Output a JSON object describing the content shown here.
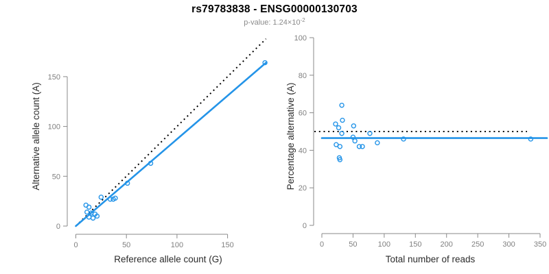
{
  "header": {
    "title": "rs79783838 - ENSG00000130703",
    "pvalue_text": "p-value: 1.24×10",
    "pvalue_exponent": "-2"
  },
  "colors": {
    "point_blue": "#2494E8",
    "axis_gray": "#898989",
    "tick_label_gray": "#7F7F7F",
    "axis_title_dark": "#2B2B2B",
    "expected_line_black": "#000000",
    "subtitle_gray": "#8A8A8A"
  },
  "chart_data": [
    {
      "type": "scatter",
      "panel": "left",
      "xlabel": "Reference allele count (G)",
      "ylabel": "Alternative allele count (A)",
      "xticks": [
        0,
        50,
        100,
        150
      ],
      "yticks": [
        0,
        50,
        100,
        150
      ],
      "xlim": [
        0,
        191
      ],
      "ylim": [
        0,
        191
      ],
      "grid": false,
      "points": [
        [
          10,
          21
        ],
        [
          13,
          19
        ],
        [
          11,
          14
        ],
        [
          15,
          13
        ],
        [
          19,
          12
        ],
        [
          13,
          9
        ],
        [
          17,
          8
        ],
        [
          21,
          10
        ],
        [
          25,
          29
        ],
        [
          34,
          27
        ],
        [
          37,
          27
        ],
        [
          39,
          28
        ],
        [
          51,
          43
        ],
        [
          74,
          63
        ],
        [
          187,
          164
        ]
      ],
      "lines": [
        {
          "name": "identity-line",
          "style": "dotted",
          "color": "#000000",
          "x1": 0,
          "y1": 0,
          "x2": 188,
          "y2": 188
        },
        {
          "name": "fit-line",
          "style": "solid",
          "color": "#2494E8",
          "x1": 0,
          "y1": 0,
          "x2": 188,
          "y2": 164
        }
      ]
    },
    {
      "type": "scatter",
      "panel": "right",
      "xlabel": "Total number of reads",
      "ylabel": "Percentage alternative (A)",
      "xticks": [
        0,
        50,
        100,
        150,
        200,
        250,
        300,
        350
      ],
      "yticks": [
        0,
        20,
        40,
        60,
        80,
        100
      ],
      "xlim": [
        0,
        361
      ],
      "ylim": [
        0,
        100
      ],
      "grid": false,
      "points": [
        [
          32,
          64
        ],
        [
          33,
          56
        ],
        [
          22,
          54
        ],
        [
          51,
          53
        ],
        [
          27,
          52
        ],
        [
          32,
          49
        ],
        [
          77,
          49
        ],
        [
          50,
          47
        ],
        [
          53,
          45
        ],
        [
          23,
          43
        ],
        [
          29,
          42
        ],
        [
          60,
          42
        ],
        [
          65,
          42
        ],
        [
          28,
          36
        ],
        [
          29,
          35
        ],
        [
          89,
          44
        ],
        [
          131,
          46
        ],
        [
          335,
          46
        ]
      ],
      "lines": [
        {
          "name": "expected-50pct-line",
          "style": "dotted",
          "color": "#000000",
          "x1": -12,
          "y1": 50,
          "x2": 329,
          "y2": 50
        },
        {
          "name": "mean-line",
          "style": "solid",
          "color": "#2494E8",
          "x1": 0,
          "y1": 46.5,
          "x2": 361,
          "y2": 46.5
        }
      ]
    }
  ]
}
